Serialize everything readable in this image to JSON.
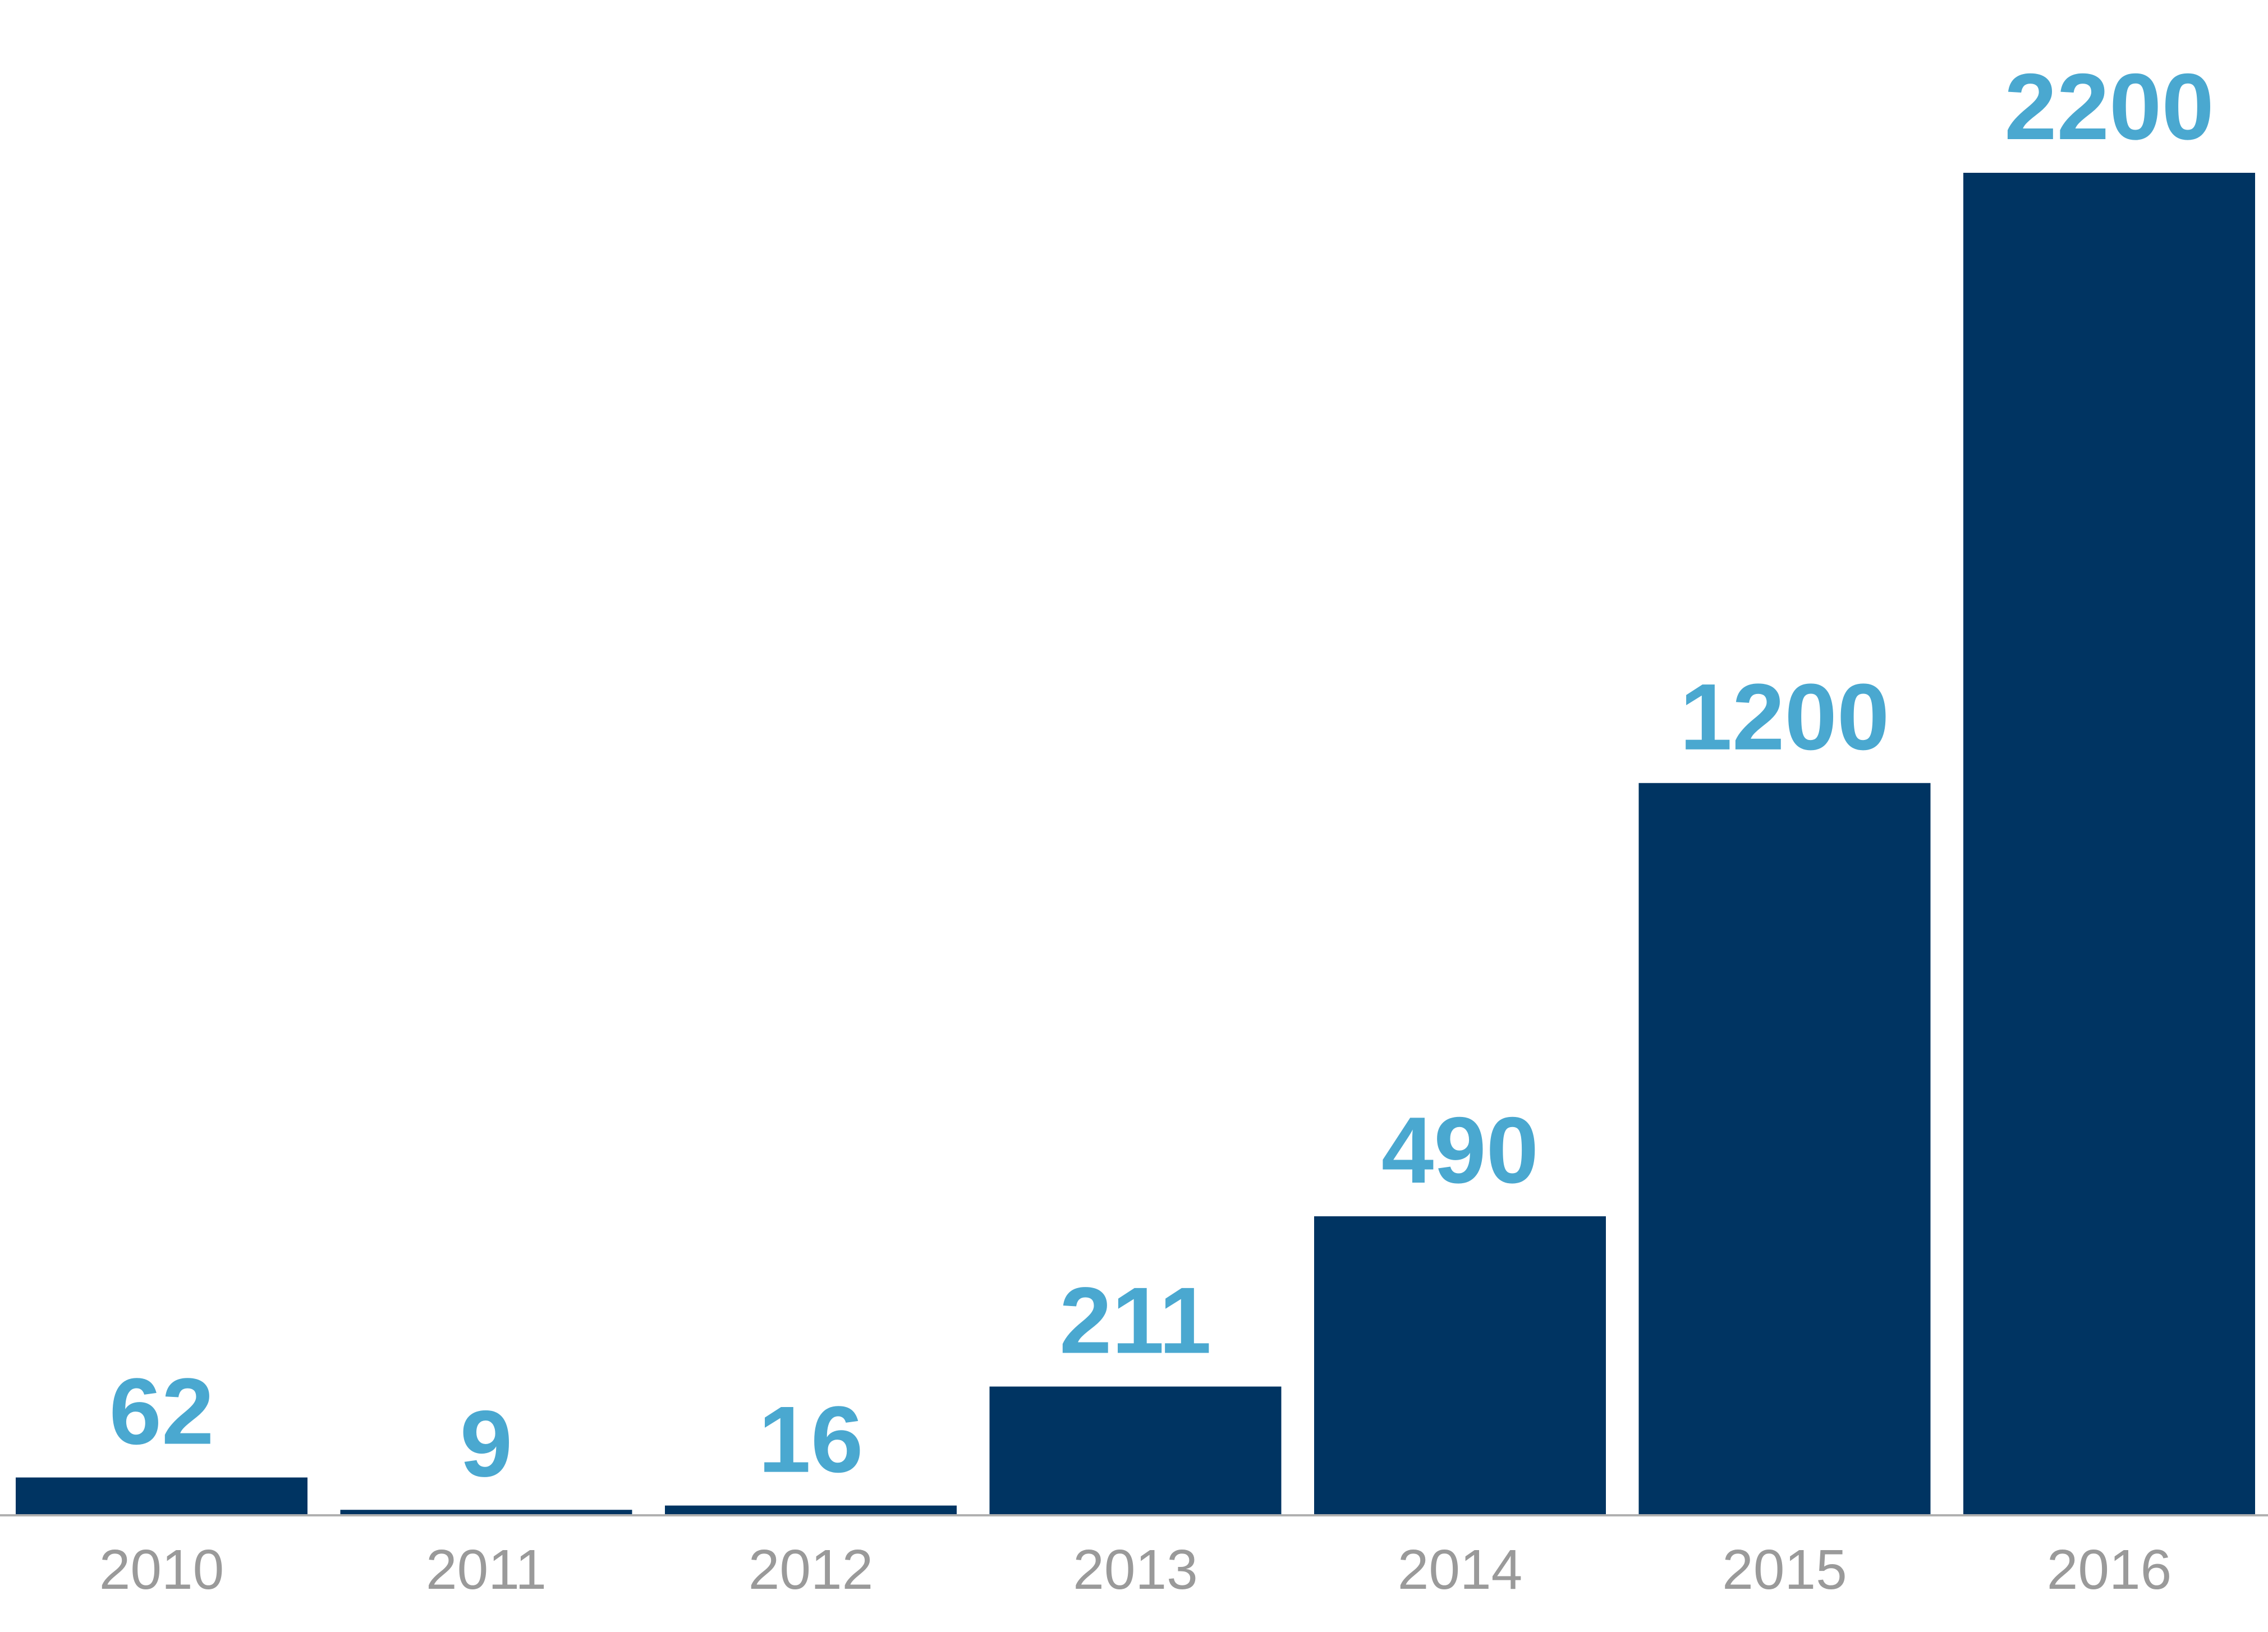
{
  "chart_data": {
    "type": "bar",
    "categories": [
      "2010",
      "2011",
      "2012",
      "2013",
      "2014",
      "2015",
      "2016"
    ],
    "values": [
      62,
      9,
      16,
      211,
      490,
      1200,
      2200
    ],
    "data_labels": [
      "62",
      "9",
      "16",
      "211",
      "490",
      "1200",
      "2200"
    ],
    "title": "",
    "xlabel": "",
    "ylabel": "",
    "ylim": [
      0,
      2200
    ],
    "grid": false,
    "legend": "none",
    "colors": {
      "bar": "#003462",
      "value_label": "#4aa8d0",
      "tick_label": "#9a9a9a",
      "axis": "#b0b0b0"
    }
  }
}
